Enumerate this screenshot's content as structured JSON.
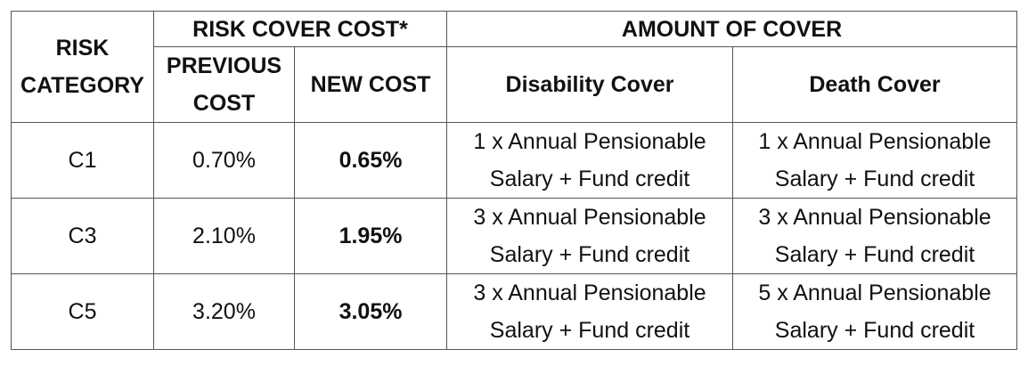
{
  "table": {
    "headers": {
      "risk_category": "RISK CATEGORY",
      "risk_cover_cost": "RISK COVER COST*",
      "amount_of_cover": "AMOUNT OF COVER",
      "previous_cost": "PREVIOUS COST",
      "new_cost": "NEW COST",
      "disability_cover": "Disability Cover",
      "death_cover": "Death Cover"
    },
    "rows": [
      {
        "category": "C1",
        "previous_cost": "0.70%",
        "new_cost": "0.65%",
        "disability_cover": "1 x Annual Pensionable Salary + Fund credit",
        "death_cover": "1 x Annual Pensionable Salary + Fund credit"
      },
      {
        "category": "C3",
        "previous_cost": "2.10%",
        "new_cost": "1.95%",
        "disability_cover": "3 x Annual Pensionable Salary + Fund credit",
        "death_cover": "3 x Annual Pensionable Salary + Fund credit"
      },
      {
        "category": "C5",
        "previous_cost": "3.20%",
        "new_cost": "3.05%",
        "disability_cover": "3 x Annual Pensionable Salary + Fund credit",
        "death_cover": "5 x Annual Pensionable Salary + Fund credit"
      }
    ]
  }
}
